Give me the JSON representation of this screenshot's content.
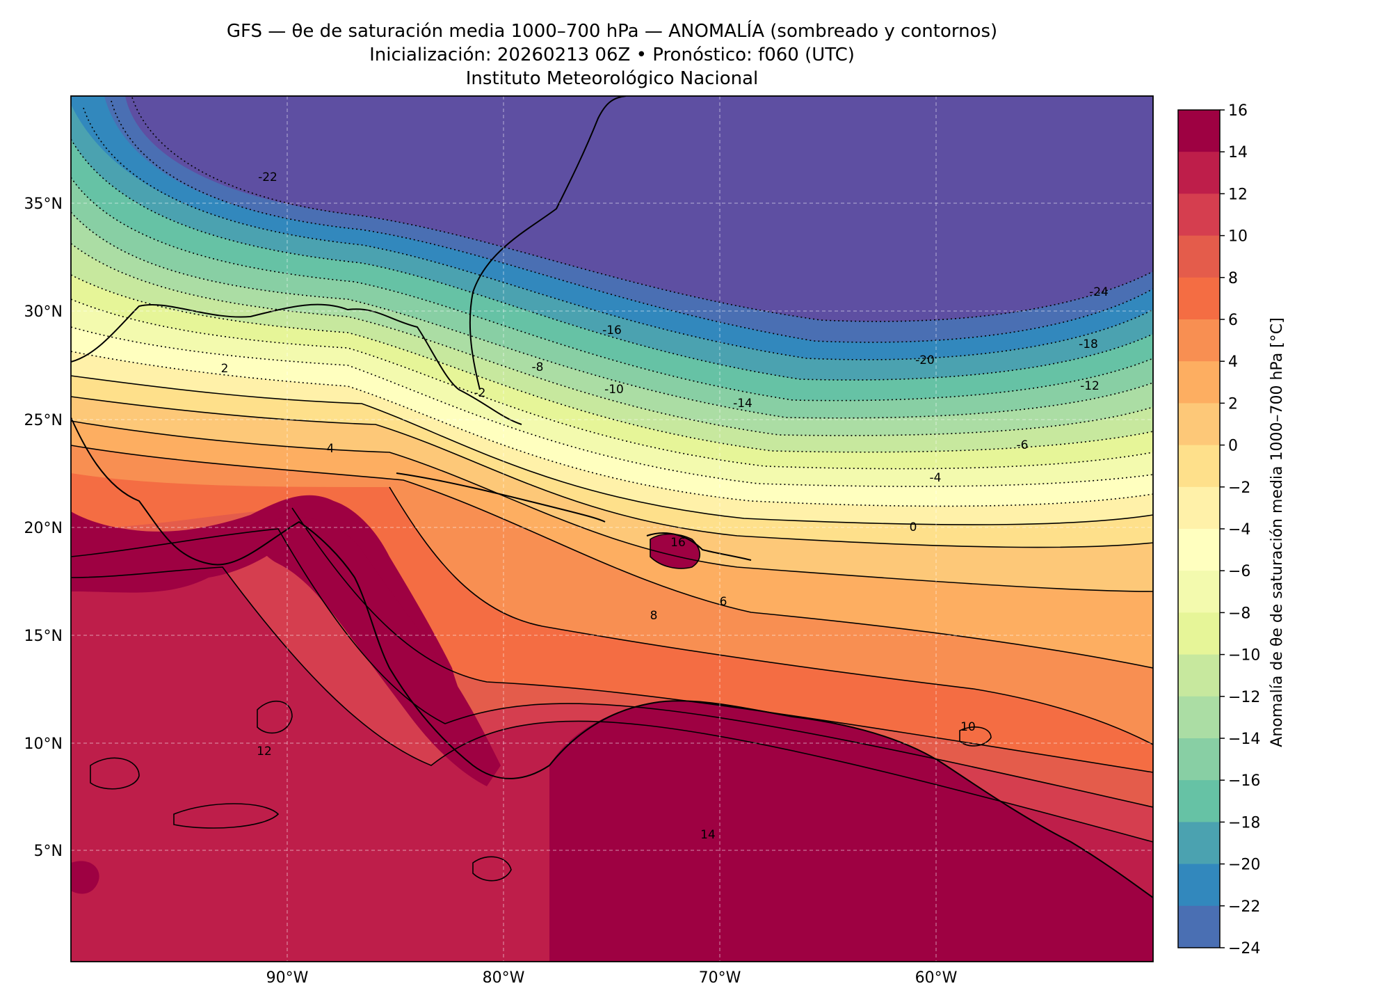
{
  "title": {
    "line1": "GFS — θe de saturación media 1000–700 hPa — ANOMALÍA (sombreado y contornos)",
    "line2": "Inicialización: 20260213 06Z   •   Pronóstico: f060 (UTC)",
    "line3": "Instituto Meteorológico Nacional"
  },
  "map": {
    "lon_range": [
      -100,
      -50
    ],
    "lat_range": [
      0,
      40
    ],
    "lat_ticks": [
      "35°N",
      "30°N",
      "25°N",
      "20°N",
      "15°N",
      "10°N",
      "5°N"
    ],
    "lon_ticks": [
      "90°W",
      "80°W",
      "70°W",
      "60°W"
    ],
    "grid": "dashed"
  },
  "colorbar": {
    "label": "Anomalía de θe de saturación media 1000–700 hPa [°C]",
    "ticks": [
      "16",
      "14",
      "12",
      "10",
      "8",
      "6",
      "4",
      "2",
      "0",
      "−2",
      "−4",
      "−6",
      "−8",
      "−10",
      "−12",
      "−14",
      "−16",
      "−18",
      "−20",
      "−22",
      "−24"
    ],
    "colors": [
      "#9e0142",
      "#be1e4a",
      "#d53e4f",
      "#e45c4b",
      "#f46d43",
      "#f88f52",
      "#fdae61",
      "#fdc878",
      "#fee08b",
      "#fff1a9",
      "#ffffbf",
      "#f3faae",
      "#e6f598",
      "#c7e89e",
      "#abdda4",
      "#88cfa4",
      "#66c2a5",
      "#4ba2b0",
      "#3288bd",
      "#4a6fb3",
      "#5e4fa2"
    ]
  },
  "contour_labels": [
    "-24",
    "-22",
    "-20",
    "-18",
    "-16",
    "-14",
    "-12",
    "-10",
    "-8",
    "-6",
    "-4",
    "-2",
    "0",
    "2",
    "4",
    "6",
    "8",
    "10",
    "12",
    "14",
    "16"
  ]
}
